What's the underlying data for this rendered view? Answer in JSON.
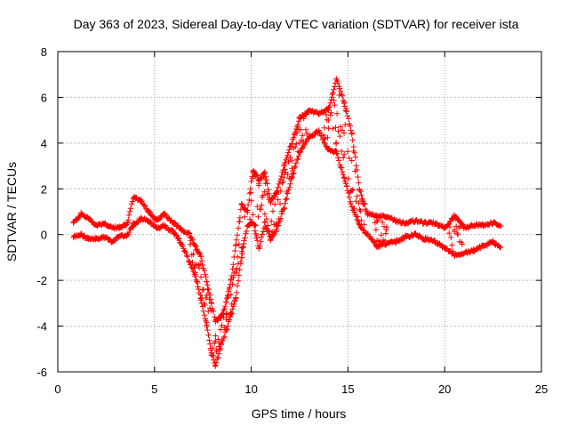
{
  "chart_data": {
    "type": "scatter",
    "title": "Day 363 of 2023, Sidereal Day-to-day VTEC variation (SDTVAR) for receiver ista",
    "xlabel": "GPS time / hours",
    "ylabel": "SDTVAR / TECUs",
    "xlim": [
      0,
      25
    ],
    "ylim": [
      -6,
      8
    ],
    "x_ticks": [
      0,
      5,
      10,
      15,
      20,
      25
    ],
    "x_tick_labels": [
      "0",
      "5",
      "10",
      "15",
      "20",
      "25"
    ],
    "y_ticks": [
      -6,
      -4,
      -2,
      0,
      2,
      4,
      6,
      8
    ],
    "y_tick_labels": [
      "-6",
      "-4",
      "-2",
      "0",
      "2",
      "4",
      "6",
      "8"
    ],
    "grid": true,
    "marker": "+",
    "series_color": "#ff0000",
    "series": [
      {
        "name": "SDTVAR",
        "bands": [
          [
            [
              0.8,
              0.5,
              -0.1
            ],
            [
              1.2,
              0.9,
              0.0
            ],
            [
              1.6,
              0.7,
              -0.2
            ],
            [
              2.0,
              0.4,
              -0.2
            ],
            [
              2.4,
              0.5,
              -0.1
            ],
            [
              2.8,
              0.3,
              -0.3
            ],
            [
              3.2,
              0.3,
              -0.1
            ],
            [
              3.6,
              0.5,
              0.0
            ],
            [
              3.9,
              1.6,
              0.4
            ],
            [
              4.3,
              1.5,
              0.7
            ],
            [
              4.7,
              1.0,
              0.6
            ],
            [
              5.1,
              0.6,
              0.3
            ],
            [
              5.5,
              0.9,
              0.4
            ],
            [
              6.0,
              0.5,
              0.1
            ],
            [
              6.4,
              0.2,
              -0.4
            ],
            [
              6.8,
              0.0,
              -1.2
            ],
            [
              7.1,
              -0.5,
              -1.8
            ],
            [
              7.4,
              -1.0,
              -2.8
            ],
            [
              7.7,
              -2.0,
              -4.0
            ],
            [
              7.95,
              -3.0,
              -5.2
            ],
            [
              8.15,
              -3.8,
              -5.7
            ],
            [
              8.45,
              -3.6,
              -4.8
            ],
            [
              8.7,
              -3.0,
              -4.2
            ],
            [
              8.95,
              -2.0,
              -3.5
            ],
            [
              9.2,
              -0.5,
              -2.8
            ],
            [
              9.5,
              1.3,
              -1.0
            ],
            [
              9.8,
              1.0,
              0.4
            ],
            [
              10.1,
              2.8,
              0.5
            ],
            [
              10.4,
              2.4,
              -0.6
            ],
            [
              10.7,
              2.7,
              0.5
            ],
            [
              11.0,
              1.5,
              -0.2
            ],
            [
              11.3,
              1.8,
              0.2
            ],
            [
              11.7,
              3.0,
              1.2
            ],
            [
              12.1,
              4.0,
              2.5
            ],
            [
              12.5,
              5.1,
              3.6
            ],
            [
              13.0,
              5.4,
              4.3
            ],
            [
              13.5,
              5.3,
              4.5
            ],
            [
              14.0,
              5.5,
              3.7
            ],
            [
              14.4,
              6.8,
              3.6
            ],
            [
              14.8,
              5.8,
              2.5
            ],
            [
              15.2,
              4.4,
              1.2
            ],
            [
              15.6,
              2.0,
              0.4
            ],
            [
              16.0,
              0.9,
              0.0
            ],
            [
              16.5,
              0.8,
              -0.5
            ],
            [
              17.0,
              0.8,
              -0.4
            ],
            [
              17.5,
              0.6,
              -0.3
            ],
            [
              18.0,
              0.5,
              -0.1
            ],
            [
              18.5,
              0.6,
              0.0
            ],
            [
              19.0,
              0.5,
              -0.2
            ],
            [
              19.5,
              0.5,
              -0.3
            ],
            [
              20.0,
              0.3,
              -0.6
            ],
            [
              20.5,
              0.8,
              -0.9
            ],
            [
              21.0,
              0.3,
              -0.8
            ],
            [
              21.5,
              0.4,
              -0.7
            ],
            [
              22.0,
              0.4,
              -0.5
            ],
            [
              22.5,
              0.5,
              -0.3
            ],
            [
              22.9,
              0.4,
              -0.6
            ]
          ]
        ]
      }
    ]
  }
}
